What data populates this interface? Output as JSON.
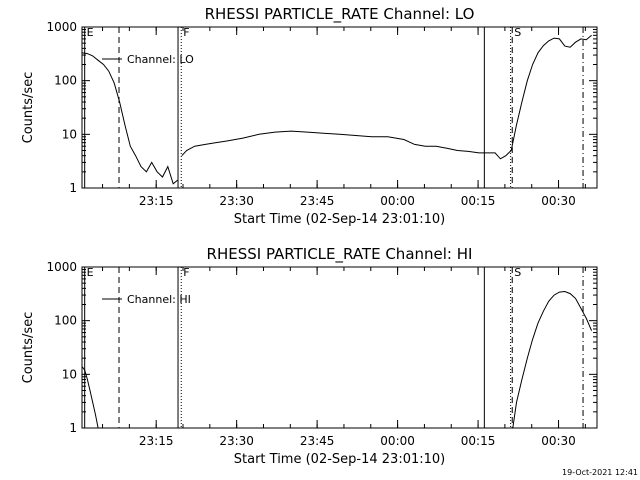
{
  "footer": {
    "timestamp": "19-Oct-2021 12:41"
  },
  "chart_data": [
    {
      "type": "line",
      "title": "RHESSI PARTICLE_RATE Channel: LO",
      "xlabel": "Start Time (02-Sep-14 23:01:10)",
      "ylabel": "Counts/sec",
      "x_units": "minutes since 23:01:10",
      "xlim": [
        0,
        96
      ],
      "ylim": [
        1,
        1000
      ],
      "yscale": "log",
      "x_ticks": [
        {
          "x": 13.83,
          "label": "23:15"
        },
        {
          "x": 28.83,
          "label": "23:30"
        },
        {
          "x": 43.83,
          "label": "23:45"
        },
        {
          "x": 58.83,
          "label": "00:00"
        },
        {
          "x": 73.83,
          "label": "00:15"
        },
        {
          "x": 88.83,
          "label": "00:30"
        }
      ],
      "y_ticks": [
        {
          "y": 1,
          "label": "1"
        },
        {
          "y": 10,
          "label": "10"
        },
        {
          "y": 100,
          "label": "100"
        },
        {
          "y": 1000,
          "label": "1000"
        }
      ],
      "legend": {
        "entries": [
          "Channel: LO"
        ],
        "placement": "top-left"
      },
      "markers": [
        {
          "x": 0.5,
          "label": "E",
          "style": "solid"
        },
        {
          "x": 6.9,
          "label": "",
          "style": "dashed"
        },
        {
          "x": 17.9,
          "label": "",
          "style": "solid"
        },
        {
          "x": 18.5,
          "label": "F",
          "style": "dotted"
        },
        {
          "x": 75.0,
          "label": "",
          "style": "solid"
        },
        {
          "x": 79.9,
          "label": "",
          "style": "dotted"
        },
        {
          "x": 80.2,
          "label": "S",
          "style": "dashed"
        },
        {
          "x": 93.4,
          "label": "",
          "style": "dashdot"
        }
      ],
      "series": [
        {
          "name": "Channel: LO",
          "segments": [
            [
              [
                0,
                330
              ],
              [
                1,
                320
              ],
              [
                2,
                290
              ],
              [
                3,
                240
              ],
              [
                4,
                200
              ],
              [
                5,
                150
              ],
              [
                6,
                90
              ],
              [
                7,
                40
              ],
              [
                8,
                15
              ],
              [
                9,
                6
              ],
              [
                10,
                4
              ],
              [
                11,
                2.5
              ],
              [
                12,
                2
              ],
              [
                13,
                3
              ],
              [
                14,
                2
              ],
              [
                15,
                1.6
              ],
              [
                16,
                2.5
              ],
              [
                17,
                1.2
              ],
              [
                17.8,
                1.4
              ]
            ],
            [
              [
                18.6,
                4
              ],
              [
                19.5,
                5
              ],
              [
                21,
                6
              ],
              [
                23,
                6.5
              ],
              [
                25,
                7
              ],
              [
                27,
                7.5
              ],
              [
                30,
                8.5
              ],
              [
                33,
                10
              ],
              [
                36,
                11
              ],
              [
                39,
                11.5
              ],
              [
                42,
                11
              ],
              [
                45,
                10.5
              ],
              [
                48,
                10
              ],
              [
                51,
                9.5
              ],
              [
                54,
                9
              ],
              [
                57,
                9
              ],
              [
                60,
                8
              ],
              [
                62,
                6.5
              ],
              [
                64,
                6
              ],
              [
                66,
                6
              ],
              [
                68,
                5.5
              ],
              [
                70,
                5
              ],
              [
                72,
                4.8
              ],
              [
                74,
                4.5
              ],
              [
                75,
                4.5
              ],
              [
                76,
                4.5
              ],
              [
                77,
                4.5
              ],
              [
                78,
                3.5
              ],
              [
                79,
                4
              ],
              [
                80,
                5
              ],
              [
                81,
                15
              ],
              [
                82,
                40
              ],
              [
                83,
                100
              ],
              [
                84,
                200
              ],
              [
                85,
                330
              ],
              [
                86,
                450
              ],
              [
                87,
                550
              ],
              [
                88,
                620
              ],
              [
                89,
                600
              ],
              [
                90,
                440
              ],
              [
                91,
                420
              ],
              [
                92,
                520
              ],
              [
                93,
                600
              ],
              [
                94,
                580
              ],
              [
                95,
                700
              ]
            ]
          ]
        }
      ]
    },
    {
      "type": "line",
      "title": "RHESSI PARTICLE_RATE Channel: HI",
      "xlabel": "Start Time (02-Sep-14 23:01:10)",
      "ylabel": "Counts/sec",
      "x_units": "minutes since 23:01:10",
      "xlim": [
        0,
        96
      ],
      "ylim": [
        1,
        1000
      ],
      "yscale": "log",
      "x_ticks": [
        {
          "x": 13.83,
          "label": "23:15"
        },
        {
          "x": 28.83,
          "label": "23:30"
        },
        {
          "x": 43.83,
          "label": "23:45"
        },
        {
          "x": 58.83,
          "label": "00:00"
        },
        {
          "x": 73.83,
          "label": "00:15"
        },
        {
          "x": 88.83,
          "label": "00:30"
        }
      ],
      "y_ticks": [
        {
          "y": 1,
          "label": "1"
        },
        {
          "y": 10,
          "label": "10"
        },
        {
          "y": 100,
          "label": "100"
        },
        {
          "y": 1000,
          "label": "1000"
        }
      ],
      "legend": {
        "entries": [
          "Channel: HI"
        ],
        "placement": "top-left"
      },
      "markers": [
        {
          "x": 0.5,
          "label": "E",
          "style": "solid"
        },
        {
          "x": 6.9,
          "label": "",
          "style": "dashed"
        },
        {
          "x": 17.9,
          "label": "",
          "style": "solid"
        },
        {
          "x": 18.5,
          "label": "F",
          "style": "dotted"
        },
        {
          "x": 75.0,
          "label": "",
          "style": "solid"
        },
        {
          "x": 79.9,
          "label": "",
          "style": "dotted"
        },
        {
          "x": 80.2,
          "label": "S",
          "style": "dashed"
        },
        {
          "x": 93.4,
          "label": "",
          "style": "dashdot"
        }
      ],
      "series": [
        {
          "name": "Channel: HI",
          "segments": [
            [
              [
                0,
                14
              ],
              [
                0.5,
                12
              ],
              [
                1,
                8
              ],
              [
                1.5,
                5
              ],
              [
                2,
                3
              ],
              [
                2.5,
                1.8
              ],
              [
                3,
                1
              ]
            ],
            [
              [
                80.3,
                1
              ],
              [
                81,
                3
              ],
              [
                82,
                8
              ],
              [
                83,
                20
              ],
              [
                84,
                45
              ],
              [
                85,
                90
              ],
              [
                86,
                150
              ],
              [
                87,
                230
              ],
              [
                88,
                300
              ],
              [
                89,
                340
              ],
              [
                90,
                350
              ],
              [
                91,
                320
              ],
              [
                92,
                260
              ],
              [
                93,
                170
              ],
              [
                94,
                110
              ],
              [
                95,
                65
              ]
            ]
          ]
        }
      ]
    }
  ]
}
